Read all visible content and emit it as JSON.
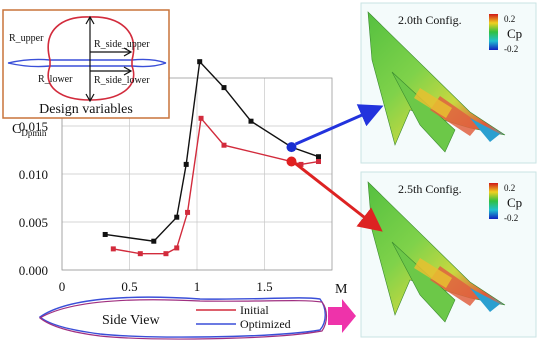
{
  "chart_data": {
    "type": "line",
    "ylabel_main": "C",
    "ylabel_sub": "Dpmin",
    "xlabel": "M",
    "xlim": [
      0,
      2.0
    ],
    "ylim": [
      0,
      0.02
    ],
    "xticks": [
      "0",
      "0.5",
      "1",
      "1.5"
    ],
    "xtick_values": [
      0,
      0.5,
      1,
      1.5
    ],
    "yticks": [
      "0.000",
      "0.005",
      "0.010",
      "0.015"
    ],
    "ytick_values": [
      0,
      0.005,
      0.01,
      0.015
    ],
    "grid": true,
    "series": [
      {
        "key": "black",
        "color": "#111111",
        "x": [
          0.32,
          0.68,
          0.85,
          0.92,
          1.02,
          1.2,
          1.4,
          1.7,
          1.9
        ],
        "y": [
          0.0037,
          0.003,
          0.0055,
          0.011,
          0.0217,
          0.019,
          0.0155,
          0.0128,
          0.0118
        ]
      },
      {
        "key": "red",
        "color": "#d22b3c",
        "x": [
          0.38,
          0.58,
          0.77,
          0.85,
          0.93,
          1.03,
          1.2,
          1.7,
          1.77,
          1.9
        ],
        "y": [
          0.0022,
          0.0017,
          0.0017,
          0.0023,
          0.006,
          0.0158,
          0.013,
          0.0113,
          0.011,
          0.0113
        ]
      }
    ],
    "highlight_points": [
      {
        "x": 1.7,
        "y": 0.0128,
        "color": "#1a2fd0"
      },
      {
        "x": 1.7,
        "y": 0.0113,
        "color": "#e02020"
      }
    ]
  },
  "design_box": {
    "labels": [
      "R_upper",
      "R_side_upper",
      "R_lower",
      "R_side_lower"
    ],
    "caption": "Design variables"
  },
  "side_view": {
    "label": "Side View",
    "legend_initial": "Initial",
    "legend_optimized": "Optimized",
    "initial_color": "#d22b3c",
    "optimized_color": "#3a4fd8"
  },
  "configs": [
    {
      "title": "2.0th Config.",
      "scale_top": "0.2",
      "scale_label": "Cp",
      "scale_bottom": "-0.2"
    },
    {
      "title": "2.5th Config.",
      "scale_top": "0.2",
      "scale_label": "Cp",
      "scale_bottom": "-0.2"
    }
  ],
  "colors": {
    "arrow_blue": "#2233dd",
    "arrow_red": "#dd2222",
    "pink_arrow": "#ee33aa",
    "design_border": "#c8733a"
  }
}
